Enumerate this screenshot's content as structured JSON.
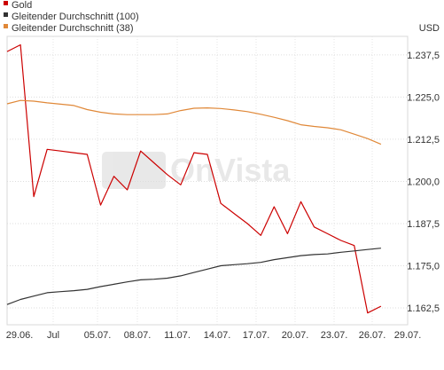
{
  "chart_data": {
    "type": "line",
    "unit_label": "USD",
    "watermark": "OnVista",
    "x_labels": [
      "29.06.",
      "Jul",
      "05.07.",
      "08.07.",
      "11.07.",
      "14.07.",
      "17.07.",
      "20.07.",
      "23.07.",
      "26.07.",
      "29.07."
    ],
    "yticks": [
      "1.237,5",
      "1.225,0",
      "1.212,5",
      "1.200,0",
      "1.187,5",
      "1.175,0",
      "1.162,5"
    ],
    "ytick_values": [
      1237.5,
      1225.0,
      1212.5,
      1200.0,
      1187.5,
      1175.0,
      1162.5
    ],
    "ylim": [
      1157.5,
      1243.0
    ],
    "xlim": [
      0,
      30
    ],
    "grid": true,
    "legend_position": "top-left",
    "series": [
      {
        "name": "Gold",
        "color": "#cc0000",
        "x": [
          0,
          1,
          2,
          3,
          4,
          5,
          6,
          7,
          8,
          9,
          10,
          11,
          12,
          13,
          14,
          15,
          16,
          17,
          18,
          19,
          20,
          21,
          22,
          23,
          24,
          25,
          26,
          27,
          28
        ],
        "y": [
          1238.5,
          1240.5,
          1195.5,
          1209.5,
          1209.0,
          1208.5,
          1208.0,
          1193.0,
          1201.5,
          1197.5,
          1209.0,
          1205.5,
          1202.0,
          1199.0,
          1208.5,
          1208.0,
          1193.5,
          1190.5,
          1187.5,
          1184.0,
          1192.5,
          1184.5,
          1194.0,
          1186.5,
          1184.5,
          1182.5,
          1181.0,
          1161.0,
          1163.0
        ]
      },
      {
        "name": "Gleitender Durchschnitt (100)",
        "color": "#333333",
        "x": [
          0,
          1,
          2,
          3,
          4,
          5,
          6,
          7,
          8,
          9,
          10,
          11,
          12,
          13,
          14,
          15,
          16,
          17,
          18,
          19,
          20,
          21,
          22,
          23,
          24,
          25,
          26,
          27,
          28
        ],
        "y": [
          1163.5,
          1165.0,
          1166.0,
          1167.0,
          1167.3,
          1167.6,
          1168.0,
          1168.8,
          1169.5,
          1170.2,
          1170.8,
          1171.0,
          1171.3,
          1172.0,
          1173.0,
          1174.0,
          1175.0,
          1175.3,
          1175.6,
          1176.0,
          1176.8,
          1177.4,
          1178.0,
          1178.3,
          1178.5,
          1179.0,
          1179.4,
          1179.8,
          1180.2
        ]
      },
      {
        "name": "Gleitender Durchschnitt (38)",
        "color": "#e08838",
        "x": [
          0,
          1,
          2,
          3,
          4,
          5,
          6,
          7,
          8,
          9,
          10,
          11,
          12,
          13,
          14,
          15,
          16,
          17,
          18,
          19,
          20,
          21,
          22,
          23,
          24,
          25,
          26,
          27,
          28
        ],
        "y": [
          1223.0,
          1224.0,
          1223.8,
          1223.3,
          1222.9,
          1222.5,
          1221.3,
          1220.5,
          1220.0,
          1219.8,
          1219.8,
          1219.8,
          1220.0,
          1221.0,
          1221.7,
          1221.8,
          1221.6,
          1221.2,
          1220.7,
          1219.9,
          1219.0,
          1218.0,
          1216.8,
          1216.3,
          1215.9,
          1215.3,
          1214.0,
          1212.7,
          1211.0
        ]
      }
    ]
  }
}
